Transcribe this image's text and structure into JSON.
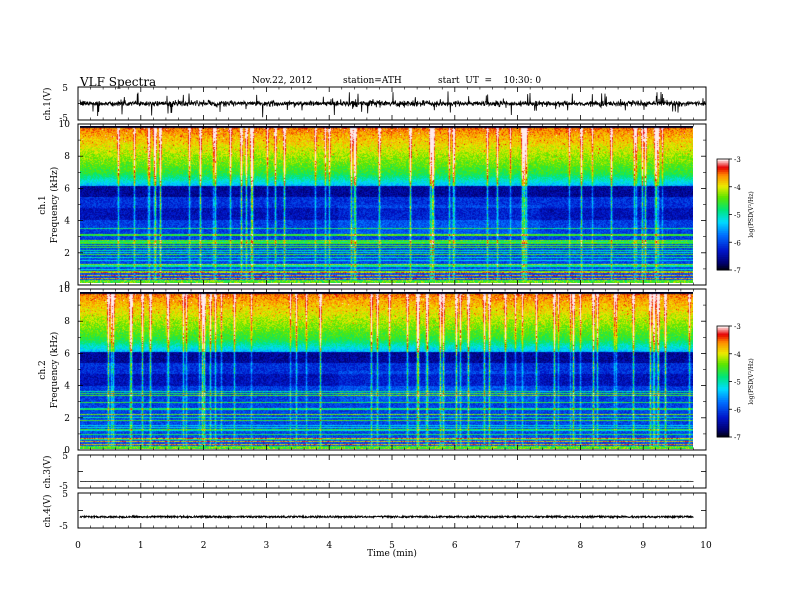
{
  "header": {
    "title": "VLF  Spectra",
    "date": "Nov.22, 2012",
    "station": "station=ATH",
    "start": "start  UT  =    10:30: 0"
  },
  "chart_data": [
    {
      "type": "line",
      "name": "ch1-waveform",
      "ylabel": "ch.1(V)",
      "ylim": [
        -5,
        5
      ],
      "yticks": [
        "5",
        "-5"
      ],
      "xlim": [
        0,
        10
      ],
      "baseline": 0,
      "amplitude": 1.2
    },
    {
      "type": "heatmap",
      "name": "ch1-spectrogram",
      "ylabel": "Frequency  (kHz)",
      "channel_label": "ch.1",
      "ylim": [
        0,
        10
      ],
      "yticks": [
        "0",
        "2",
        "4",
        "6",
        "8",
        "10"
      ],
      "xlim": [
        0,
        9.8
      ],
      "colorbar": {
        "label": "log(PSD(V²/Hz)",
        "range": [
          -7,
          -3
        ],
        "ticks": [
          "-3",
          "-4",
          "-5",
          "-6",
          "-7"
        ]
      }
    },
    {
      "type": "heatmap",
      "name": "ch2-spectrogram",
      "ylabel": "Frequency  (kHz)",
      "channel_label": "ch.2",
      "ylim": [
        0,
        10
      ],
      "yticks": [
        "0",
        "2",
        "4",
        "6",
        "8",
        "10"
      ],
      "xlim": [
        0,
        9.8
      ],
      "colorbar": {
        "label": "log(PSD(V²/Hz)",
        "range": [
          -7,
          -3
        ],
        "ticks": [
          "-3",
          "-4",
          "-5",
          "-6",
          "-7"
        ]
      }
    },
    {
      "type": "line",
      "name": "ch3-waveform",
      "ylabel": "ch.3(V)",
      "ylim": [
        -5,
        5
      ],
      "yticks": [
        "5",
        "-5"
      ],
      "xlim": [
        0,
        9.8
      ],
      "baseline": -3,
      "amplitude": 0.05
    },
    {
      "type": "line",
      "name": "ch4-waveform",
      "ylabel": "ch.4(V)",
      "ylim": [
        -5,
        5
      ],
      "yticks": [
        "5",
        "-5"
      ],
      "xlim": [
        0,
        9.8
      ],
      "baseline": -1.8,
      "amplitude": 0.25
    }
  ],
  "xaxis": {
    "label": "Time  (min)",
    "ticks": [
      "0",
      "1",
      "2",
      "3",
      "4",
      "5",
      "6",
      "7",
      "8",
      "9",
      "10"
    ],
    "range": [
      0,
      10
    ]
  }
}
